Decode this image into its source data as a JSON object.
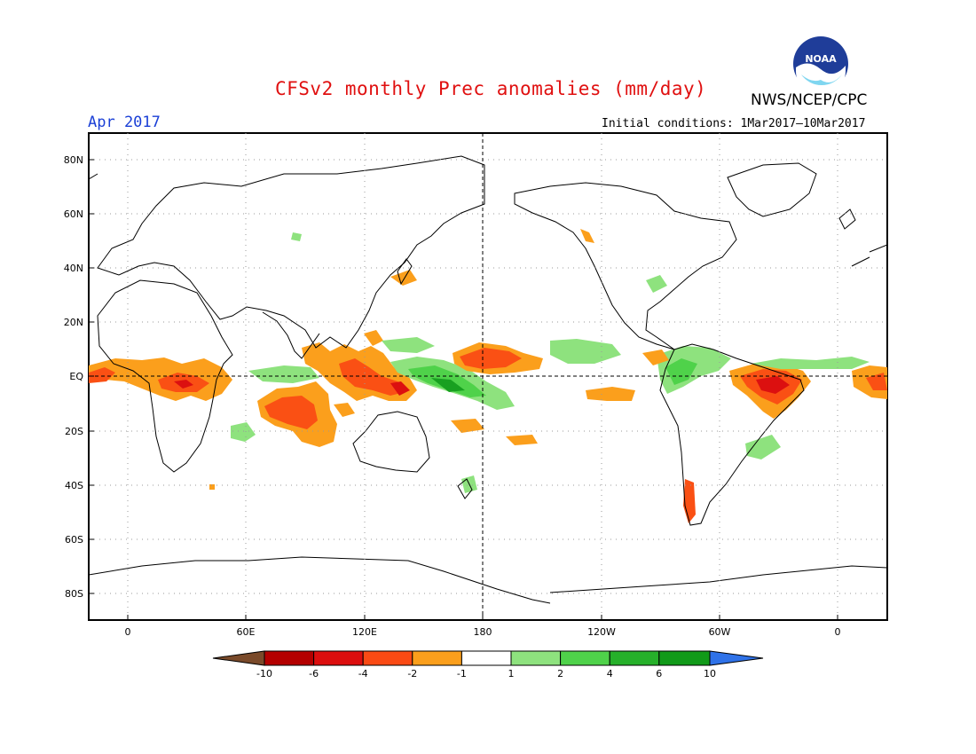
{
  "header": {
    "title": "CFSv2 monthly Prec anomalies (mm/day)",
    "organization": "NWS/NCEP/CPC",
    "period": "Apr 2017",
    "initial_conditions": "Initial conditions: 1Mar2017–10Mar2017",
    "logo_text": "NOAA"
  },
  "map": {
    "lat_labels": [
      "80N",
      "60N",
      "40N",
      "20N",
      "EQ",
      "20S",
      "40S",
      "60S",
      "80S"
    ],
    "lon_labels": [
      "0",
      "60E",
      "120E",
      "180",
      "120W",
      "60W",
      "0"
    ],
    "lon_range": [
      -20,
      385
    ],
    "lat_range": [
      -90,
      90
    ],
    "grid": "dotted"
  },
  "colorbar": {
    "labels": [
      "-10",
      "-6",
      "-4",
      "-2",
      "-1",
      "1",
      "2",
      "4",
      "6",
      "10"
    ],
    "colors": [
      "#7a4a2a",
      "#b40000",
      "#dc0e0e",
      "#fa4a14",
      "#fb9f1c",
      "#ffffff",
      "#8ee27e",
      "#4fd24a",
      "#26b02a",
      "#119a19",
      "#2f72e8"
    ]
  },
  "colors": {
    "strong_dry": "#dc1010",
    "moderate_dry": "#fa5014",
    "weak_dry": "#fb9f1c",
    "weak_wet": "#8ee27e",
    "moderate_wet": "#4fd24a",
    "strong_wet": "#18a020"
  }
}
